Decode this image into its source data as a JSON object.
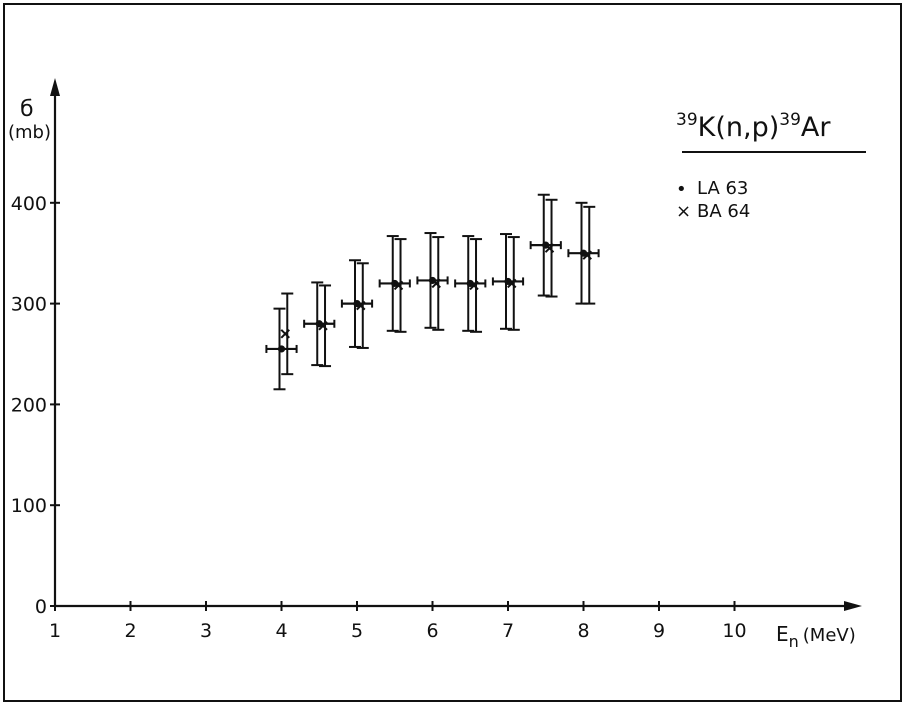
{
  "chart_data": {
    "type": "scatter",
    "title": {
      "sup1": "39",
      "main": "K(n,p)",
      "sup2": "39",
      "product": "Ar"
    },
    "ylabel": {
      "symbol": "б",
      "unit": "(mb)"
    },
    "xlabel": {
      "symbol": "E",
      "sub": "n",
      "unit": "(MeV)"
    },
    "xlim": [
      1,
      11
    ],
    "ylim": [
      0,
      500
    ],
    "x_ticks": [
      1,
      2,
      3,
      4,
      5,
      6,
      7,
      8,
      9,
      10
    ],
    "y_ticks": [
      0,
      100,
      200,
      300,
      400
    ],
    "grid": false,
    "legend_position": "top-right",
    "series": [
      {
        "name": "LA 63",
        "marker": "dot",
        "points": [
          {
            "x": 4.0,
            "y": 255,
            "yerr_low": 40,
            "yerr_high": 40,
            "xerr": 0.2
          },
          {
            "x": 4.5,
            "y": 280,
            "yerr_low": 41,
            "yerr_high": 41,
            "xerr": 0.2
          },
          {
            "x": 5.0,
            "y": 300,
            "yerr_low": 43,
            "yerr_high": 43,
            "xerr": 0.2
          },
          {
            "x": 5.5,
            "y": 320,
            "yerr_low": 47,
            "yerr_high": 47,
            "xerr": 0.2
          },
          {
            "x": 6.0,
            "y": 323,
            "yerr_low": 47,
            "yerr_high": 47,
            "xerr": 0.2
          },
          {
            "x": 6.5,
            "y": 320,
            "yerr_low": 47,
            "yerr_high": 47,
            "xerr": 0.2
          },
          {
            "x": 7.0,
            "y": 322,
            "yerr_low": 47,
            "yerr_high": 47,
            "xerr": 0.2
          },
          {
            "x": 7.5,
            "y": 358,
            "yerr_low": 50,
            "yerr_high": 50,
            "xerr": 0.2
          },
          {
            "x": 8.0,
            "y": 350,
            "yerr_low": 50,
            "yerr_high": 50,
            "xerr": 0.2
          }
        ]
      },
      {
        "name": "BA 64",
        "marker": "cross",
        "points": [
          {
            "x": 4.05,
            "y": 270,
            "yerr_low": 40,
            "yerr_high": 40
          },
          {
            "x": 4.55,
            "y": 278,
            "yerr_low": 40,
            "yerr_high": 40
          },
          {
            "x": 5.05,
            "y": 298,
            "yerr_low": 42,
            "yerr_high": 42
          },
          {
            "x": 5.55,
            "y": 318,
            "yerr_low": 46,
            "yerr_high": 46
          },
          {
            "x": 6.05,
            "y": 320,
            "yerr_low": 46,
            "yerr_high": 46
          },
          {
            "x": 6.55,
            "y": 318,
            "yerr_low": 46,
            "yerr_high": 46
          },
          {
            "x": 7.05,
            "y": 320,
            "yerr_low": 46,
            "yerr_high": 46
          },
          {
            "x": 7.55,
            "y": 355,
            "yerr_low": 48,
            "yerr_high": 48
          },
          {
            "x": 8.05,
            "y": 348,
            "yerr_low": 48,
            "yerr_high": 48
          }
        ]
      }
    ],
    "legend": [
      {
        "symbol": "•",
        "label": "LA 63"
      },
      {
        "symbol": "×",
        "label": "BA 64"
      }
    ],
    "colors": {
      "ink": "#111111",
      "background": "#ffffff"
    }
  }
}
